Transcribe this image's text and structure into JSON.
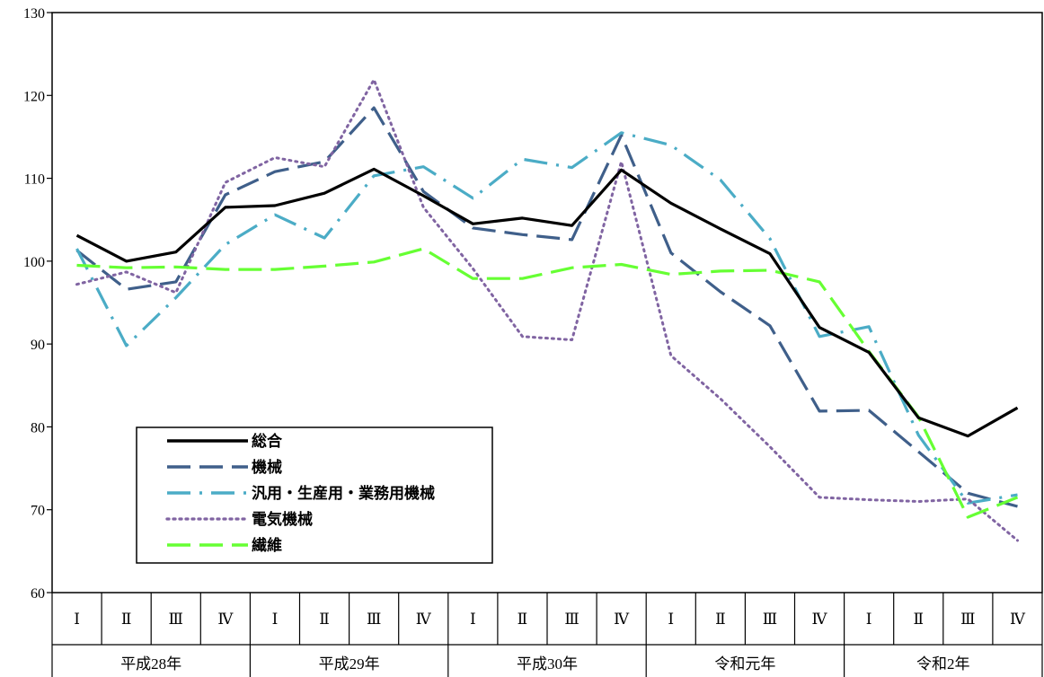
{
  "chart_data": {
    "type": "line",
    "title": "",
    "xlabel": "",
    "ylabel": "",
    "ylim": [
      60,
      130
    ],
    "yticks": [
      60,
      70,
      80,
      90,
      100,
      110,
      120,
      130
    ],
    "grid": false,
    "legend_position": "bottom-left",
    "categories": [
      "I",
      "II",
      "III",
      "IV",
      "I",
      "II",
      "III",
      "IV",
      "I",
      "II",
      "III",
      "IV",
      "I",
      "II",
      "III",
      "IV",
      "I",
      "II",
      "III",
      "IV"
    ],
    "quarter_labels": [
      "Ⅰ",
      "Ⅱ",
      "Ⅲ",
      "Ⅳ",
      "Ⅰ",
      "Ⅱ",
      "Ⅲ",
      "Ⅳ",
      "Ⅰ",
      "Ⅱ",
      "Ⅲ",
      "Ⅳ",
      "Ⅰ",
      "Ⅱ",
      "Ⅲ",
      "Ⅳ",
      "Ⅰ",
      "Ⅱ",
      "Ⅲ",
      "Ⅳ"
    ],
    "year_groups": [
      "平成28年",
      "平成29年",
      "平成30年",
      "令和元年",
      "令和2年"
    ],
    "series": [
      {
        "name": "総合",
        "color": "#000000",
        "style": "solid",
        "values": [
          103.1,
          100.0,
          101.1,
          106.5,
          106.7,
          108.2,
          111.1,
          107.9,
          104.5,
          105.2,
          104.3,
          111.0,
          107.0,
          103.9,
          100.9,
          92.0,
          89.0,
          81.1,
          78.9,
          82.3
        ]
      },
      {
        "name": "機械",
        "color": "#3f5f8a",
        "style": "dash",
        "values": [
          101.3,
          96.6,
          97.5,
          108.0,
          110.8,
          112.0,
          118.5,
          108.4,
          104.0,
          103.2,
          102.6,
          115.2,
          101.0,
          96.3,
          92.2,
          81.9,
          82.0,
          77.0,
          72.0,
          70.4
        ]
      },
      {
        "name": "汎用・生産用・業務用機械",
        "color": "#4bacc6",
        "style": "dashdot",
        "values": [
          101.5,
          89.8,
          95.6,
          102.0,
          105.6,
          102.8,
          110.3,
          111.4,
          107.6,
          112.3,
          111.3,
          115.5,
          114.0,
          109.8,
          102.7,
          90.9,
          92.1,
          79.0,
          70.8,
          71.8
        ]
      },
      {
        "name": "電気機械",
        "color": "#8064a2",
        "style": "dot",
        "values": [
          97.2,
          98.7,
          96.2,
          109.5,
          112.5,
          111.4,
          121.9,
          106.5,
          99.1,
          90.9,
          90.5,
          112.0,
          88.6,
          83.4,
          77.6,
          71.5,
          71.2,
          71.0,
          71.3,
          66.3
        ]
      },
      {
        "name": "繊維",
        "color": "#66ff33",
        "style": "dash",
        "values": [
          99.5,
          99.2,
          99.3,
          99.0,
          99.0,
          99.4,
          99.9,
          101.5,
          97.9,
          97.9,
          99.2,
          99.6,
          98.4,
          98.8,
          98.9,
          97.5,
          89.1,
          81.2,
          69.1,
          71.5
        ]
      }
    ]
  }
}
